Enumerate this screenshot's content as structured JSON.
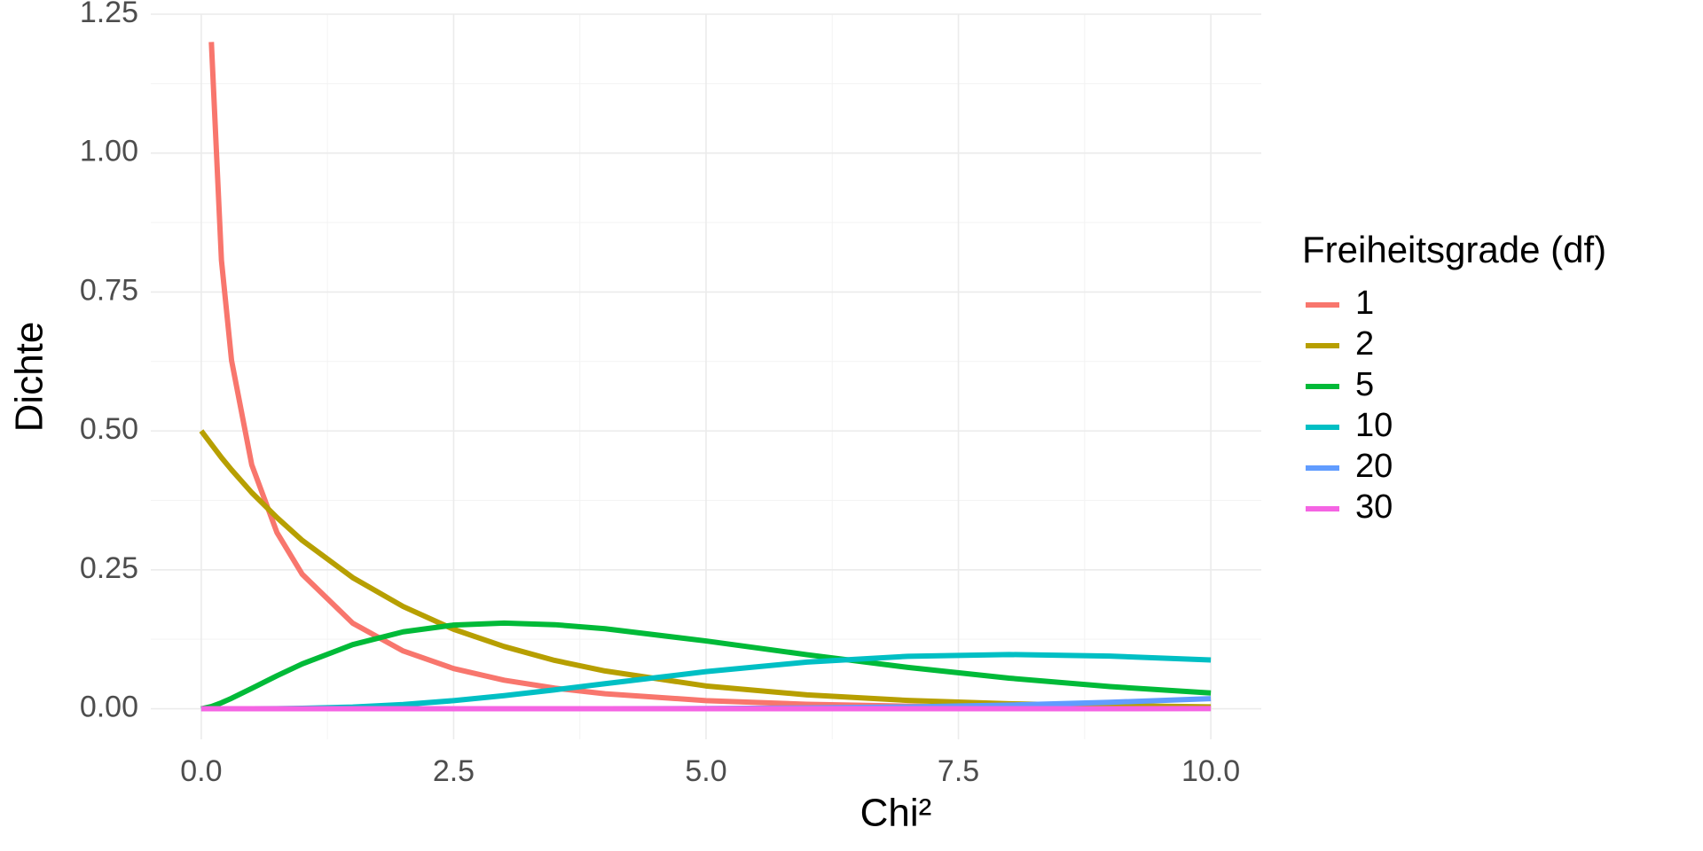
{
  "chart_data": {
    "type": "line",
    "x_label": "Chi²",
    "y_label": "Dichte",
    "legend_title": "Freiheitsgrade (df)",
    "x": [
      0,
      0.1,
      0.2,
      0.3,
      0.5,
      0.75,
      1,
      1.5,
      2,
      2.5,
      3,
      3.5,
      4,
      5,
      6,
      7,
      8,
      9,
      10
    ],
    "series": [
      {
        "name": "1",
        "color": "#F8766D",
        "values": [
          null,
          1.2,
          0.807,
          0.627,
          0.439,
          0.317,
          0.242,
          0.154,
          0.104,
          0.0723,
          0.0514,
          0.0371,
          0.027,
          0.0146,
          0.0081,
          0.0046,
          0.0026,
          0.0015,
          0.00085
        ]
      },
      {
        "name": "2",
        "color": "#B79F00",
        "values": [
          0.5,
          0.476,
          0.452,
          0.43,
          0.389,
          0.344,
          0.303,
          0.236,
          0.184,
          0.143,
          0.112,
          0.087,
          0.068,
          0.041,
          0.025,
          0.015,
          0.009,
          0.0056,
          0.0034
        ]
      },
      {
        "name": "5",
        "color": "#00BA38",
        "values": [
          0,
          0.004,
          0.0108,
          0.0188,
          0.0366,
          0.0594,
          0.0807,
          0.1154,
          0.1384,
          0.1506,
          0.1542,
          0.1513,
          0.144,
          0.122,
          0.0973,
          0.0744,
          0.0551,
          0.0399,
          0.0283
        ]
      },
      {
        "name": "10",
        "color": "#00BFC4",
        "values": [
          0,
          0,
          0,
          1e-05,
          6e-05,
          0.00028,
          0.00079,
          0.0031,
          0.0077,
          0.0146,
          0.0235,
          0.034,
          0.0451,
          0.0668,
          0.084,
          0.0944,
          0.0976,
          0.0948,
          0.0877
        ]
      },
      {
        "name": "20",
        "color": "#619CFF",
        "values": [
          0,
          0,
          0,
          0,
          0,
          0,
          0,
          0,
          0,
          0,
          0,
          0,
          0.0001,
          0.0004,
          0.0014,
          0.0033,
          0.0066,
          0.0116,
          0.0181
        ]
      },
      {
        "name": "30",
        "color": "#F564E3",
        "values": [
          0,
          0,
          0,
          0,
          0,
          0,
          0,
          0,
          0,
          0,
          0,
          0,
          0,
          0,
          0,
          0,
          2e-05,
          9e-05,
          0.00024
        ]
      }
    ],
    "xlim": [
      -0.5,
      10.5
    ],
    "xticks": [
      {
        "value": 0,
        "label": "0.0"
      },
      2.5,
      {
        "value": 5,
        "label": "5.0"
      },
      7.5,
      {
        "value": 10,
        "label": "10.0"
      }
    ],
    "ylim": [
      -0.055,
      1.25
    ],
    "yticks": [
      {
        "value": 0,
        "label": "0.00"
      },
      0.25,
      {
        "value": 0.5,
        "label": "0.50"
      },
      0.75,
      {
        "value": 1,
        "label": "1.00"
      },
      1.25
    ],
    "grid": true
  }
}
